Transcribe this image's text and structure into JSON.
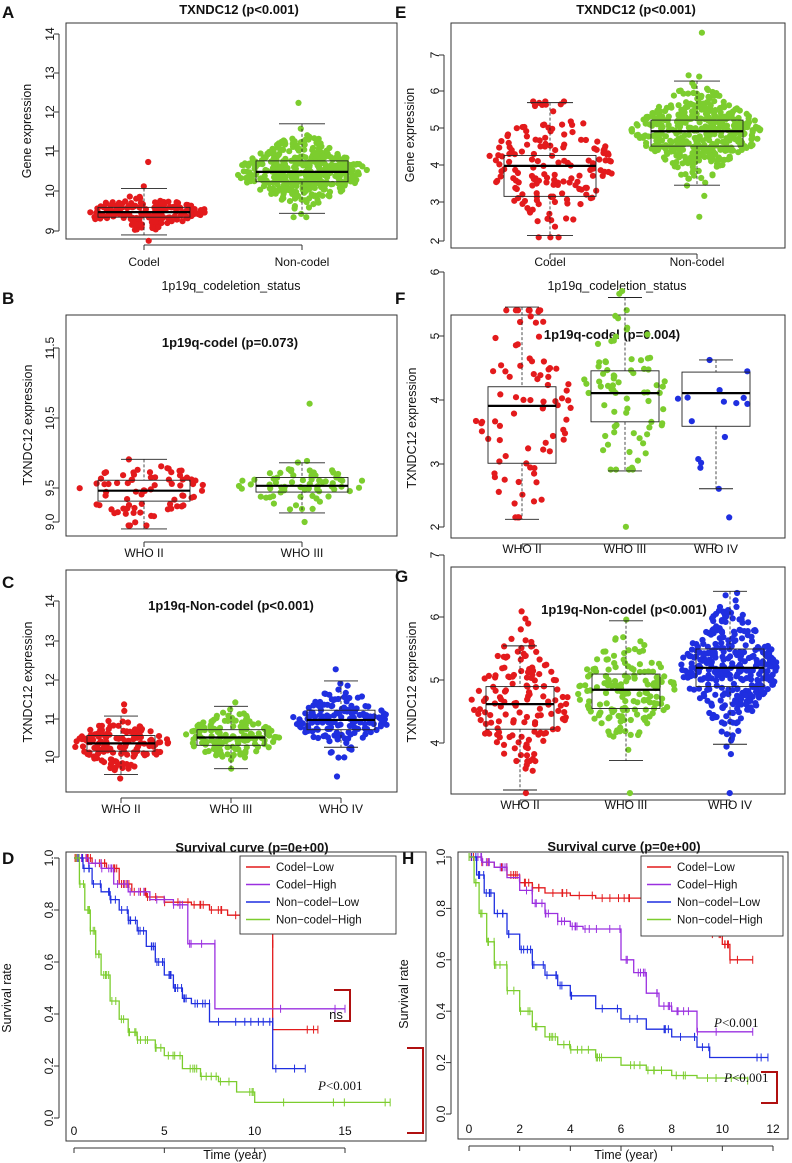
{
  "colors": {
    "red": "#e31a1c",
    "green": "#7ccd2e",
    "blue": "#1f2fe0",
    "purple": "#9b30e0",
    "bracket": "#b01010"
  },
  "chart_data": [
    {
      "panel": "A",
      "type": "scatter",
      "subtype": "beeswarm-boxplot",
      "title": "TXNDC12 (p<0.001)",
      "xlabel": "1p19q_codeletion_status",
      "ylabel": "Gene expression",
      "ylim": [
        8.9,
        14.2
      ],
      "yticks": [
        "9",
        "10",
        "11",
        "12",
        "13",
        "14"
      ],
      "categories": [
        "Codel",
        "Non-codel"
      ],
      "groups": [
        {
          "name": "Codel",
          "color": "red",
          "median": 9.48,
          "q1": 9.35,
          "q3": 9.6,
          "whisker_low": 8.9,
          "whisker_high": 10.08,
          "min": 8.75,
          "max": 10.75,
          "n": 160
        },
        {
          "name": "Non-codel",
          "color": "green",
          "median": 10.5,
          "q1": 10.25,
          "q3": 10.78,
          "whisker_low": 9.45,
          "whisker_high": 11.72,
          "min": 9.35,
          "max": 12.25,
          "n": 420
        }
      ]
    },
    {
      "panel": "B",
      "type": "scatter",
      "subtype": "beeswarm-boxplot",
      "title": "1p19q-codel (p=0.073)",
      "xlabel": "",
      "ylabel": "TXNDC12 expression",
      "ylim": [
        8.85,
        12.0
      ],
      "yticks": [
        "9.0",
        "9.5",
        "10.5",
        "11.5"
      ],
      "categories": [
        "WHO II",
        "WHO III"
      ],
      "groups": [
        {
          "name": "WHO II",
          "color": "red",
          "median": 9.45,
          "q1": 9.3,
          "q3": 9.6,
          "whisker_low": 8.9,
          "whisker_high": 9.9,
          "min": 8.95,
          "max": 9.9,
          "n": 75
        },
        {
          "name": "WHO III",
          "color": "green",
          "median": 9.52,
          "q1": 9.43,
          "q3": 9.64,
          "whisker_low": 9.13,
          "whisker_high": 9.85,
          "min": 9.0,
          "max": 10.7,
          "n": 70
        }
      ]
    },
    {
      "panel": "C",
      "type": "scatter",
      "subtype": "beeswarm-boxplot",
      "title": "1p19q-Non-codel (p<0.001)",
      "xlabel": "",
      "ylabel": "TXNDC12 expression",
      "ylim": [
        9.4,
        14.4
      ],
      "yticks": [
        "10",
        "11",
        "12",
        "13",
        "14"
      ],
      "categories": [
        "WHO II",
        "WHO III",
        "WHO IV"
      ],
      "groups": [
        {
          "name": "WHO II",
          "color": "red",
          "median": 10.35,
          "q1": 10.15,
          "q3": 10.55,
          "whisker_low": 9.55,
          "whisker_high": 11.05,
          "min": 9.45,
          "max": 11.35,
          "n": 140
        },
        {
          "name": "WHO III",
          "color": "green",
          "median": 10.5,
          "q1": 10.3,
          "q3": 10.7,
          "whisker_low": 9.7,
          "whisker_high": 11.3,
          "min": 9.7,
          "max": 11.4,
          "n": 140
        },
        {
          "name": "WHO IV",
          "color": "blue",
          "median": 10.95,
          "q1": 10.7,
          "q3": 11.2,
          "whisker_low": 10.25,
          "whisker_high": 11.95,
          "min": 9.5,
          "max": 12.25,
          "n": 160
        }
      ]
    },
    {
      "panel": "D",
      "type": "line",
      "subtype": "kaplan-meier",
      "title": "Survival curve (p=0e+00)",
      "xlabel": "Time (year)",
      "ylabel": "Survival rate",
      "xlim": [
        -0.5,
        18
      ],
      "ylim": [
        -0.03,
        1.05
      ],
      "xticks": [
        "0",
        "5",
        "10",
        "15"
      ],
      "yticks": [
        "0.0",
        "0.2",
        "0.4",
        "0.6",
        "0.8",
        "1.0"
      ],
      "legend": [
        "Codel−Low",
        "Codel−High",
        "Non−codel−Low",
        "Non−codel−High"
      ],
      "legend_position": "top-right",
      "annotations": {
        "ns": "ns",
        "p_letter": "P",
        "p_rest": "<0.001"
      },
      "series": [
        {
          "name": "Codel-Low",
          "color": "red",
          "points": [
            [
              0,
              1
            ],
            [
              0.5,
              1
            ],
            [
              1,
              0.98
            ],
            [
              1.8,
              0.96
            ],
            [
              2.5,
              0.9
            ],
            [
              3.2,
              0.87
            ],
            [
              4,
              0.85
            ],
            [
              5,
              0.83
            ],
            [
              6.5,
              0.82
            ],
            [
              7.5,
              0.8
            ],
            [
              8.5,
              0.78
            ],
            [
              11,
              0.67
            ],
            [
              11,
              0.34
            ],
            [
              13.5,
              0.34
            ]
          ]
        },
        {
          "name": "Codel-High",
          "color": "purple",
          "points": [
            [
              0,
              1
            ],
            [
              0.8,
              0.98
            ],
            [
              1.5,
              0.96
            ],
            [
              2.2,
              0.9
            ],
            [
              3,
              0.87
            ],
            [
              4.2,
              0.84
            ],
            [
              5.5,
              0.82
            ],
            [
              6.3,
              0.67
            ],
            [
              7.8,
              0.67
            ],
            [
              7.8,
              0.42
            ],
            [
              15,
              0.42
            ]
          ]
        },
        {
          "name": "Non-codel-Low",
          "color": "blue",
          "points": [
            [
              0,
              1
            ],
            [
              0.5,
              0.96
            ],
            [
              1,
              0.9
            ],
            [
              1.5,
              0.87
            ],
            [
              2,
              0.84
            ],
            [
              2.5,
              0.8
            ],
            [
              3,
              0.76
            ],
            [
              3.5,
              0.72
            ],
            [
              4,
              0.66
            ],
            [
              4.5,
              0.6
            ],
            [
              5,
              0.55
            ],
            [
              5.5,
              0.5
            ],
            [
              6,
              0.46
            ],
            [
              6.5,
              0.44
            ],
            [
              7.5,
              0.44
            ],
            [
              7.5,
              0.37
            ],
            [
              10,
              0.37
            ],
            [
              11,
              0.37
            ],
            [
              11,
              0.19
            ],
            [
              12.8,
              0.19
            ]
          ]
        },
        {
          "name": "Non-codel-High",
          "color": "green",
          "points": [
            [
              0,
              1
            ],
            [
              0.3,
              0.9
            ],
            [
              0.6,
              0.8
            ],
            [
              0.9,
              0.72
            ],
            [
              1.2,
              0.63
            ],
            [
              1.5,
              0.55
            ],
            [
              2,
              0.45
            ],
            [
              2.5,
              0.38
            ],
            [
              3,
              0.33
            ],
            [
              3.5,
              0.3
            ],
            [
              4.5,
              0.27
            ],
            [
              5,
              0.24
            ],
            [
              6,
              0.19
            ],
            [
              7,
              0.16
            ],
            [
              8,
              0.14
            ],
            [
              9,
              0.1
            ],
            [
              10,
              0.06
            ],
            [
              17.5,
              0.06
            ]
          ]
        }
      ]
    },
    {
      "panel": "E",
      "type": "scatter",
      "subtype": "beeswarm-boxplot",
      "title": "TXNDC12 (p<0.001)",
      "xlabel": "1p19q_codeletion_status",
      "ylabel": "Gene expression",
      "ylim": [
        1.95,
        7.8
      ],
      "yticks": [
        "2",
        "3",
        "4",
        "5",
        "6",
        "7"
      ],
      "categories": [
        "Codel",
        "Non-codel"
      ],
      "groups": [
        {
          "name": "Codel",
          "color": "red",
          "median": 4.02,
          "q1": 3.2,
          "q3": 4.3,
          "whisker_low": 2.15,
          "whisker_high": 5.72,
          "min": 2.1,
          "max": 5.75,
          "n": 160
        },
        {
          "name": "Non-codel",
          "color": "green",
          "median": 4.95,
          "q1": 4.55,
          "q3": 5.25,
          "whisker_low": 3.5,
          "whisker_high": 6.3,
          "min": 2.65,
          "max": 7.6,
          "n": 430
        }
      ]
    },
    {
      "panel": "F",
      "type": "scatter",
      "subtype": "beeswarm-boxplot",
      "title": "1p19q-codel (p=0.004)",
      "xlabel": "",
      "ylabel": "TXNDC12  expression",
      "ylim": [
        1.95,
        6.7
      ],
      "yticks": [
        "2",
        "3",
        "4",
        "5",
        "6"
      ],
      "categories": [
        "WHO II",
        "WHO III",
        "WHO IV"
      ],
      "groups": [
        {
          "name": "WHO II",
          "color": "red",
          "median": 3.9,
          "q1": 3.0,
          "q3": 4.2,
          "whisker_low": 2.12,
          "whisker_high": 5.45,
          "min": 2.15,
          "max": 5.4,
          "n": 85
        },
        {
          "name": "WHO III",
          "color": "green",
          "median": 4.1,
          "q1": 3.65,
          "q3": 4.45,
          "whisker_low": 2.88,
          "whisker_high": 5.6,
          "min": 2.9,
          "max": 5.7,
          "n": 75
        },
        {
          "name": "WHO IV",
          "color": "blue",
          "median": 4.1,
          "q1": 3.58,
          "q3": 4.43,
          "whisker_low": 2.6,
          "whisker_high": 4.62,
          "min": 2.6,
          "max": 4.62,
          "n": 15
        }
      ]
    },
    {
      "panel": "G",
      "type": "scatter",
      "subtype": "beeswarm-boxplot",
      "title": "1p19q-Non-codel (p<0.001)",
      "xlabel": "",
      "ylabel": "TXNDC12 expression",
      "ylim": [
        3.15,
        7.75
      ],
      "yticks": [
        "4",
        "5",
        "6",
        "7"
      ],
      "categories": [
        "WHO II",
        "WHO III",
        "WHO IV"
      ],
      "groups": [
        {
          "name": "WHO II",
          "color": "red",
          "median": 4.62,
          "q1": 4.22,
          "q3": 4.9,
          "whisker_low": 3.25,
          "whisker_high": 5.55,
          "min": 3.2,
          "max": 6.1,
          "n": 150
        },
        {
          "name": "WHO III",
          "color": "green",
          "median": 4.85,
          "q1": 4.55,
          "q3": 5.1,
          "whisker_low": 3.72,
          "whisker_high": 5.95,
          "min": 3.2,
          "max": 7.45,
          "n": 160
        },
        {
          "name": "WHO IV",
          "color": "blue",
          "median": 5.2,
          "q1": 4.9,
          "q3": 5.5,
          "whisker_low": 3.98,
          "whisker_high": 6.42,
          "min": 3.2,
          "max": 7.6,
          "n": 340
        }
      ]
    },
    {
      "panel": "H",
      "type": "line",
      "subtype": "kaplan-meier",
      "title": "Survival curve (p=0e+00)",
      "xlabel": "Time (year)",
      "ylabel": "Survival rate",
      "xlim": [
        -0.3,
        12.5
      ],
      "ylim": [
        -0.03,
        1.05
      ],
      "xticks": [
        "0",
        "2",
        "4",
        "6",
        "8",
        "10",
        "12"
      ],
      "yticks": [
        "0.0",
        "0.2",
        "0.4",
        "0.6",
        "0.8",
        "1.0"
      ],
      "legend": [
        "Codel−Low",
        "Codel−High",
        "Non−codel−Low",
        "Non−codel−High"
      ],
      "legend_position": "top-right",
      "annotations": {
        "p_letter": "P",
        "p_rest": "<0.001"
      },
      "series": [
        {
          "name": "Codel-Low",
          "color": "red",
          "points": [
            [
              0,
              1
            ],
            [
              0.5,
              0.98
            ],
            [
              1,
              0.96
            ],
            [
              1.5,
              0.93
            ],
            [
              2,
              0.9
            ],
            [
              2.5,
              0.88
            ],
            [
              3,
              0.86
            ],
            [
              4,
              0.85
            ],
            [
              5,
              0.84
            ],
            [
              6,
              0.84
            ],
            [
              7,
              0.82
            ],
            [
              8,
              0.8
            ],
            [
              9,
              0.74
            ],
            [
              9.5,
              0.7
            ],
            [
              10,
              0.66
            ],
            [
              10.3,
              0.6
            ],
            [
              11.2,
              0.6
            ]
          ]
        },
        {
          "name": "Codel-High",
          "color": "purple",
          "points": [
            [
              0,
              1
            ],
            [
              0.5,
              0.98
            ],
            [
              1,
              0.96
            ],
            [
              1.5,
              0.92
            ],
            [
              2,
              0.87
            ],
            [
              2.5,
              0.82
            ],
            [
              3,
              0.78
            ],
            [
              3.5,
              0.75
            ],
            [
              4,
              0.73
            ],
            [
              4.5,
              0.72
            ],
            [
              5.5,
              0.72
            ],
            [
              6,
              0.6
            ],
            [
              6.5,
              0.55
            ],
            [
              7,
              0.47
            ],
            [
              7.5,
              0.42
            ],
            [
              8,
              0.4
            ],
            [
              9,
              0.32
            ],
            [
              11.2,
              0.32
            ]
          ]
        },
        {
          "name": "Non-codel-Low",
          "color": "blue",
          "points": [
            [
              0,
              1
            ],
            [
              0.3,
              0.93
            ],
            [
              0.6,
              0.86
            ],
            [
              1,
              0.78
            ],
            [
              1.5,
              0.7
            ],
            [
              2,
              0.64
            ],
            [
              2.5,
              0.58
            ],
            [
              3,
              0.54
            ],
            [
              3.5,
              0.5
            ],
            [
              4,
              0.46
            ],
            [
              5,
              0.41
            ],
            [
              6,
              0.37
            ],
            [
              7,
              0.33
            ],
            [
              8,
              0.3
            ],
            [
              9,
              0.26
            ],
            [
              9.5,
              0.22
            ],
            [
              11.8,
              0.22
            ]
          ]
        },
        {
          "name": "Non-codel-High",
          "color": "green",
          "points": [
            [
              0,
              1
            ],
            [
              0.2,
              0.9
            ],
            [
              0.4,
              0.78
            ],
            [
              0.7,
              0.67
            ],
            [
              1,
              0.58
            ],
            [
              1.5,
              0.48
            ],
            [
              2,
              0.4
            ],
            [
              2.5,
              0.34
            ],
            [
              3,
              0.3
            ],
            [
              3.5,
              0.27
            ],
            [
              4,
              0.25
            ],
            [
              5,
              0.22
            ],
            [
              6,
              0.19
            ],
            [
              7,
              0.17
            ],
            [
              8,
              0.15
            ],
            [
              9,
              0.14
            ],
            [
              11,
              0.13
            ]
          ]
        }
      ]
    }
  ]
}
